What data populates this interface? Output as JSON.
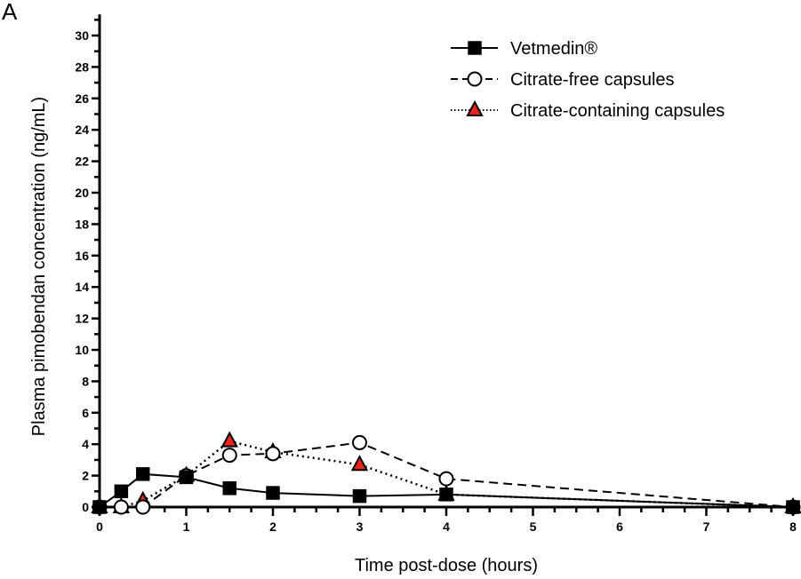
{
  "panel_label": "A",
  "chart_data": {
    "type": "line",
    "title": "",
    "xlabel": "Time post-dose (hours)",
    "ylabel": "Plasma pimobendan concentration (ng/mL)",
    "xlim": [
      0,
      8
    ],
    "ylim": [
      0,
      31
    ],
    "x_ticks": [
      0,
      1,
      2,
      3,
      4,
      5,
      6,
      7,
      8
    ],
    "y_ticks": [
      0,
      2,
      4,
      6,
      8,
      10,
      12,
      14,
      16,
      18,
      20,
      22,
      24,
      26,
      28,
      30
    ],
    "grid": false,
    "legend_position": "upper right",
    "series": [
      {
        "name": "Vetmedin®",
        "line_style": "solid",
        "marker": "square",
        "marker_fill": "#000000",
        "x": [
          0,
          0.25,
          0.5,
          1,
          1.5,
          2,
          3,
          4,
          8
        ],
        "values": [
          0,
          1.0,
          2.1,
          1.9,
          1.2,
          0.9,
          0.7,
          0.8,
          0
        ]
      },
      {
        "name": "Citrate-free capsules",
        "line_style": "dashed",
        "marker": "circle",
        "marker_fill": "#ffffff",
        "x": [
          0,
          0.25,
          0.5,
          1,
          1.5,
          2,
          3,
          4,
          8
        ],
        "values": [
          0,
          0,
          0,
          2.0,
          3.3,
          3.4,
          4.1,
          1.8,
          0
        ]
      },
      {
        "name": "Citrate-containing capsules",
        "line_style": "dotted",
        "marker": "triangle",
        "marker_fill": "#e8251a",
        "x": [
          0,
          0.25,
          0.5,
          1,
          1.5,
          2,
          3,
          4,
          8
        ],
        "values": [
          0,
          0,
          0.4,
          2.0,
          4.2,
          3.5,
          2.7,
          0.8,
          0
        ]
      }
    ]
  }
}
